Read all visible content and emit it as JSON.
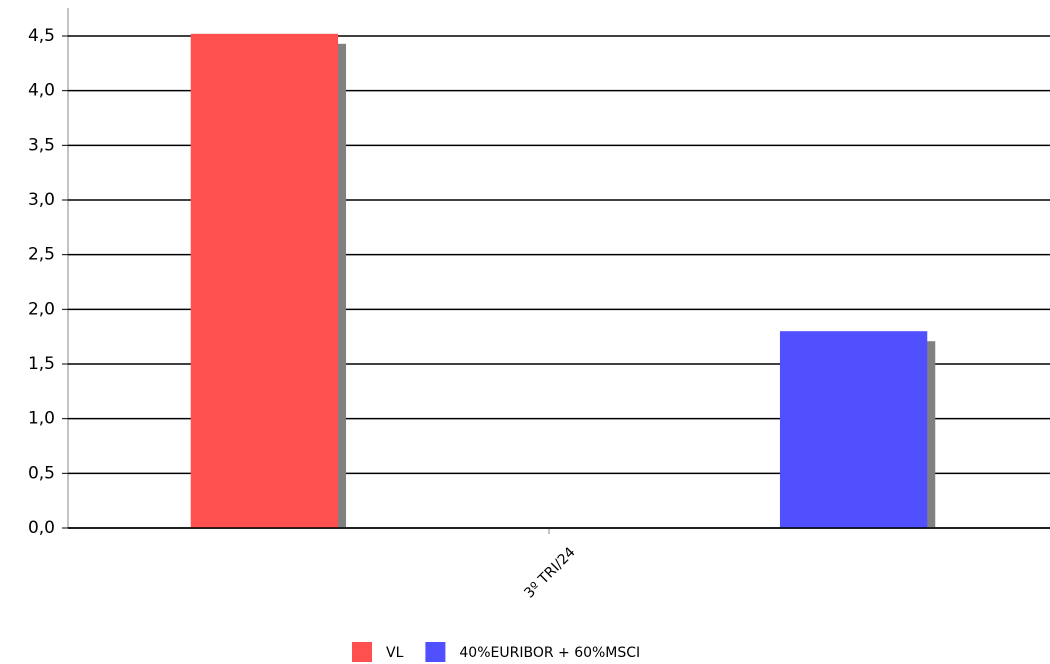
{
  "chart_data": {
    "type": "bar",
    "categories": [
      "3º TRI/24"
    ],
    "series": [
      {
        "name": "VL",
        "color": "#ff5050",
        "values": [
          4.52
        ]
      },
      {
        "name": "40%EURIBOR + 60%MSCI",
        "color": "#5050ff",
        "values": [
          1.8
        ]
      }
    ],
    "ylim": [
      0,
      4.5
    ],
    "yticks": [
      {
        "value": 0,
        "label": "0,0"
      },
      {
        "value": 0.5,
        "label": "0,5"
      },
      {
        "value": 1,
        "label": "1,0"
      },
      {
        "value": 1.5,
        "label": "1,5"
      },
      {
        "value": 2,
        "label": "2,0"
      },
      {
        "value": 2.5,
        "label": "2,5"
      },
      {
        "value": 3,
        "label": "3,0"
      },
      {
        "value": 3.5,
        "label": "3,5"
      },
      {
        "value": 4,
        "label": "4,0"
      },
      {
        "value": 4.5,
        "label": "4,5"
      }
    ],
    "grid": true,
    "legend": "bottom"
  }
}
